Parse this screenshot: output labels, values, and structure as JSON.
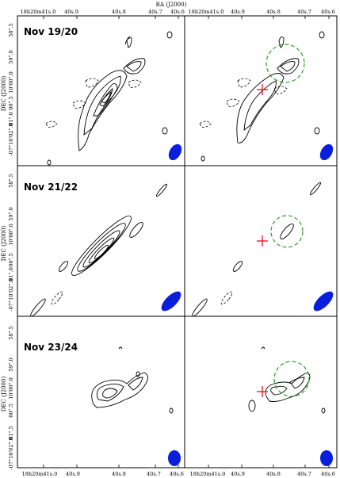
{
  "figure": {
    "top_axis_title": "RA (J2000)",
    "left_axis_title": "DEC (J2000)",
    "ra_ticks": [
      "18h20m41s.0",
      "40s.9",
      "40s.8",
      "40s.7",
      "40s.6"
    ],
    "dec_ticks": [
      "58\".5",
      "59\".0",
      "10'00\".0",
      "00\".5",
      "01\".0",
      "01\".5",
      "-07°10'02\".0"
    ],
    "epochs": [
      {
        "label": "Nov 19/20"
      },
      {
        "label": "Nov 21/22"
      },
      {
        "label": "Nov 23/24"
      }
    ],
    "colors": {
      "contour": "#000000",
      "beam": "#0a1fdc",
      "circle": "#2ca02c",
      "cross": "#e3001b"
    }
  }
}
